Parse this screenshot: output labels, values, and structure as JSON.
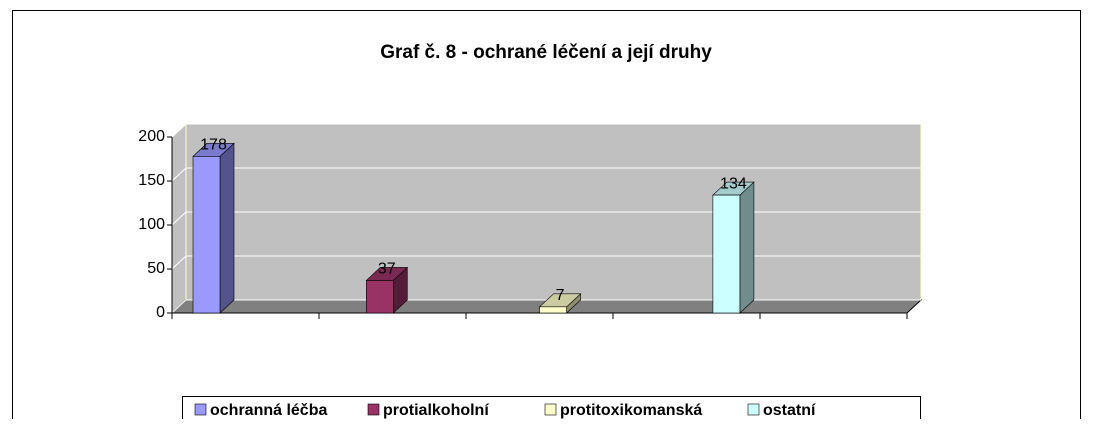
{
  "chart_data": {
    "type": "bar3d",
    "title": "Graf č. 8 -  ochrané léčení a její druhy",
    "series": [
      {
        "name": "ochranná léčba",
        "color": "#9999ff",
        "values": [
          178
        ]
      },
      {
        "name": "protialkoholní",
        "color": "#993366",
        "values": [
          37
        ]
      },
      {
        "name": "protitoxikomanská",
        "color": "#ffffcc",
        "values": [
          7
        ]
      },
      {
        "name": "ostatní",
        "color": "#ccffff",
        "values": [
          134
        ]
      }
    ],
    "ylim": [
      0,
      200
    ],
    "yticks": [
      0,
      50,
      100,
      150,
      200
    ],
    "grid": true,
    "legend": "bottom"
  }
}
